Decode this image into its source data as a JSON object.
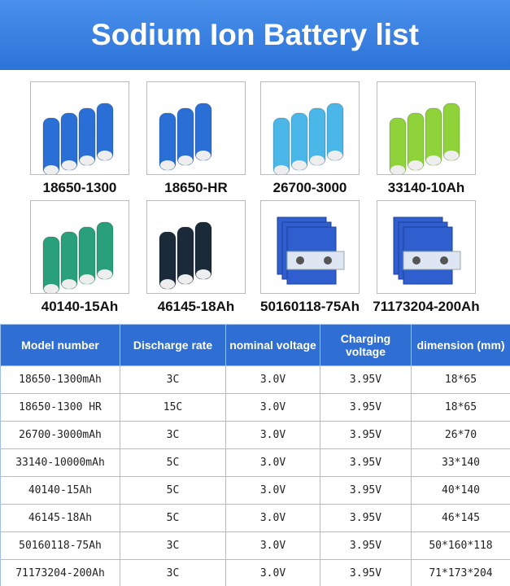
{
  "header": {
    "title": "Sodium Ion Battery list"
  },
  "products": [
    {
      "label": "18650-1300"
    },
    {
      "label": "18650-HR"
    },
    {
      "label": "26700-3000"
    },
    {
      "label": "33140-10Ah"
    },
    {
      "label": "40140-15Ah"
    },
    {
      "label": "46145-18Ah"
    },
    {
      "label": "50160118-75Ah"
    },
    {
      "label": "71173204-200Ah"
    }
  ],
  "table": {
    "header": [
      "Model number",
      "Discharge rate",
      "nominal voltage",
      "Charging voltage",
      "dimension (mm)"
    ],
    "rows": [
      [
        "18650-1300mAh",
        "3C",
        "3.0V",
        "3.95V",
        "18*65"
      ],
      [
        "18650-1300 HR",
        "15C",
        "3.0V",
        "3.95V",
        "18*65"
      ],
      [
        "26700-3000mAh",
        "3C",
        "3.0V",
        "3.95V",
        "26*70"
      ],
      [
        "33140-10000mAh",
        "5C",
        "3.0V",
        "3.95V",
        "33*140"
      ],
      [
        "40140-15Ah",
        "5C",
        "3.0V",
        "3.95V",
        "40*140"
      ],
      [
        "46145-18Ah",
        "5C",
        "3.0V",
        "3.95V",
        "46*145"
      ],
      [
        "50160118-75Ah",
        "3C",
        "3.0V",
        "3.95V",
        "50*160*118"
      ],
      [
        "71173204-200Ah",
        "3C",
        "3.0V",
        "3.95V",
        "71*173*204"
      ]
    ]
  }
}
